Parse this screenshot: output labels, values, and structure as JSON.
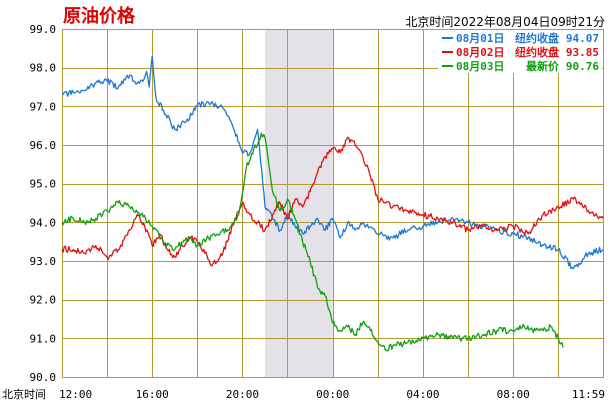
{
  "chart_data": {
    "type": "line",
    "title": "原油价格",
    "timestamp": "北京时间2022年08月04日09时21分",
    "x_axis_prefix": "北京时间",
    "xlabel": "",
    "ylabel": "",
    "ylim": [
      90.0,
      99.0
    ],
    "yticks": [
      "99.0",
      "98.0",
      "97.0",
      "96.0",
      "95.0",
      "94.0",
      "93.0",
      "92.0",
      "91.0",
      "90.0"
    ],
    "xticks": [
      {
        "label": "12:00",
        "t": 0
      },
      {
        "label": "16:00",
        "t": 240
      },
      {
        "label": "20:00",
        "t": 480
      },
      {
        "label": "00:00",
        "t": 720
      },
      {
        "label": "04:00",
        "t": 960
      },
      {
        "label": "08:00",
        "t": 1200
      },
      {
        "label": "11:59",
        "t": 1439
      }
    ],
    "shaded_range": [
      540,
      720
    ],
    "grid": true,
    "legend_position": "top-right",
    "series": [
      {
        "name": "08月01日",
        "legend_label": "纽约收盘",
        "legend_value": "94.07",
        "color": "#1e78d2",
        "t": [
          0,
          30,
          60,
          90,
          120,
          150,
          180,
          200,
          218,
          225,
          232,
          240,
          250,
          270,
          300,
          330,
          360,
          390,
          420,
          450,
          480,
          500,
          520,
          540,
          560,
          580,
          600,
          620,
          640,
          660,
          680,
          700,
          720,
          740,
          760,
          780,
          800,
          840,
          880,
          920,
          960,
          1000,
          1040,
          1080,
          1120,
          1160,
          1200,
          1240,
          1280,
          1320,
          1360,
          1400,
          1439
        ],
        "y": [
          97.3,
          97.35,
          97.4,
          97.6,
          97.65,
          97.5,
          97.8,
          97.6,
          97.7,
          97.9,
          97.5,
          98.3,
          97.2,
          96.9,
          96.4,
          96.6,
          97.0,
          97.1,
          97.0,
          96.6,
          95.8,
          95.8,
          96.4,
          94.4,
          94.1,
          93.8,
          94.2,
          93.9,
          93.7,
          93.9,
          94.1,
          93.8,
          94.1,
          93.6,
          94.0,
          93.8,
          94.0,
          93.7,
          93.6,
          93.8,
          93.9,
          94.0,
          94.1,
          94.0,
          93.9,
          93.8,
          93.7,
          93.6,
          93.4,
          93.3,
          92.8,
          93.2,
          93.3
        ]
      },
      {
        "name": "08月02日",
        "legend_label": "纽约收盘",
        "legend_value": "93.85",
        "color": "#e01010",
        "t": [
          0,
          30,
          60,
          90,
          120,
          150,
          180,
          200,
          220,
          240,
          260,
          280,
          300,
          320,
          340,
          360,
          380,
          400,
          420,
          440,
          460,
          480,
          500,
          520,
          540,
          560,
          580,
          600,
          620,
          640,
          660,
          680,
          700,
          720,
          740,
          760,
          780,
          800,
          820,
          840,
          880,
          920,
          960,
          1000,
          1040,
          1080,
          1120,
          1160,
          1200,
          1240,
          1280,
          1320,
          1360,
          1400,
          1439
        ],
        "y": [
          93.3,
          93.3,
          93.2,
          93.4,
          93.1,
          93.3,
          93.8,
          94.2,
          93.9,
          93.4,
          93.7,
          93.3,
          93.1,
          93.4,
          93.6,
          93.5,
          93.2,
          92.9,
          93.1,
          93.5,
          94.1,
          94.5,
          94.2,
          94.0,
          93.8,
          94.2,
          94.5,
          94.1,
          94.6,
          94.4,
          94.8,
          95.3,
          95.7,
          95.9,
          95.8,
          96.2,
          96.0,
          95.7,
          95.2,
          94.6,
          94.4,
          94.3,
          94.2,
          94.1,
          94.0,
          93.8,
          93.9,
          93.8,
          93.9,
          93.7,
          94.2,
          94.4,
          94.6,
          94.3,
          94.1
        ]
      },
      {
        "name": "08月03日",
        "legend_label": "最新价",
        "legend_value": "90.76",
        "color": "#10a010",
        "t": [
          0,
          30,
          60,
          90,
          120,
          150,
          180,
          210,
          240,
          270,
          300,
          330,
          360,
          390,
          420,
          450,
          470,
          490,
          510,
          520,
          530,
          540,
          550,
          560,
          580,
          600,
          620,
          640,
          660,
          680,
          700,
          720,
          740,
          760,
          780,
          800,
          820,
          840,
          860,
          880,
          920,
          960,
          1000,
          1040,
          1080,
          1120,
          1160,
          1200,
          1230,
          1260,
          1280,
          1300,
          1320,
          1333
        ],
        "y": [
          94.0,
          94.1,
          94.0,
          94.1,
          94.3,
          94.5,
          94.4,
          94.2,
          93.9,
          93.5,
          93.3,
          93.6,
          93.4,
          93.6,
          93.7,
          93.9,
          94.2,
          95.4,
          95.9,
          96.0,
          96.3,
          96.2,
          95.5,
          94.8,
          94.3,
          94.6,
          94.1,
          93.5,
          93.0,
          92.3,
          92.1,
          91.4,
          91.2,
          91.3,
          91.1,
          91.4,
          91.2,
          90.9,
          90.7,
          90.8,
          90.9,
          91.0,
          91.1,
          91.0,
          91.0,
          91.1,
          91.2,
          91.2,
          91.3,
          91.2,
          91.2,
          91.3,
          91.0,
          90.76
        ]
      }
    ]
  }
}
